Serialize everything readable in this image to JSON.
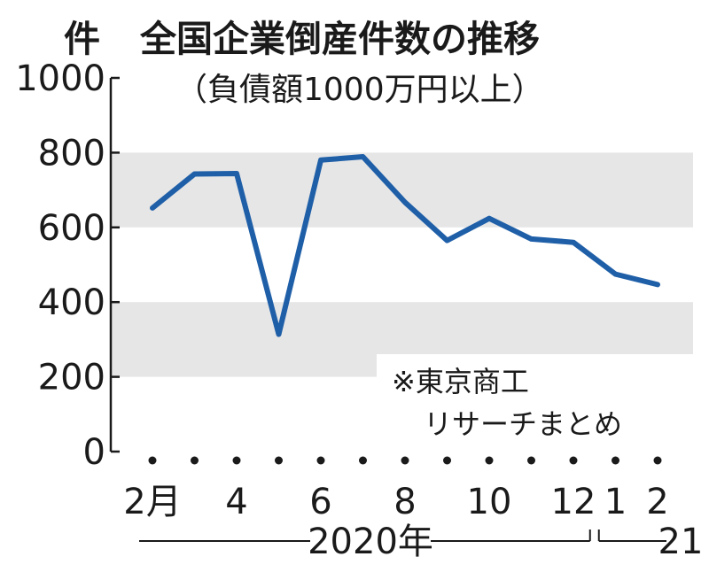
{
  "chart_data": {
    "type": "line",
    "title": "全国企業倒産件数の推移",
    "subtitle": "（負債額1000万円以上）",
    "ylabel": "件",
    "note": [
      "※東京商工",
      "リサーチまとめ"
    ],
    "ylim": [
      0,
      1000
    ],
    "yticks": [
      "1000",
      "800",
      "600",
      "400",
      "200",
      "0"
    ],
    "shaded_bands": [
      [
        200,
        400
      ],
      [
        600,
        800
      ]
    ],
    "grid": false,
    "legend": "none",
    "line_color": "#1f5fa8",
    "band_color": "#e6e6e6",
    "x_tick_labels": [
      {
        "i": 0,
        "text": "2月"
      },
      {
        "i": 2,
        "text": "4"
      },
      {
        "i": 4,
        "text": "6"
      },
      {
        "i": 6,
        "text": "8"
      },
      {
        "i": 8,
        "text": "10"
      },
      {
        "i": 10,
        "text": "12"
      },
      {
        "i": 11,
        "text": "1"
      },
      {
        "i": 12,
        "text": "2"
      }
    ],
    "year_labels": [
      "2020年",
      "21"
    ],
    "x": [
      "2020-02",
      "2020-03",
      "2020-04",
      "2020-05",
      "2020-06",
      "2020-07",
      "2020-08",
      "2020-09",
      "2020-10",
      "2020-11",
      "2020-12",
      "2021-01",
      "2021-02"
    ],
    "values": [
      652,
      743,
      744,
      314,
      780,
      789,
      667,
      565,
      624,
      569,
      560,
      475,
      447
    ]
  }
}
